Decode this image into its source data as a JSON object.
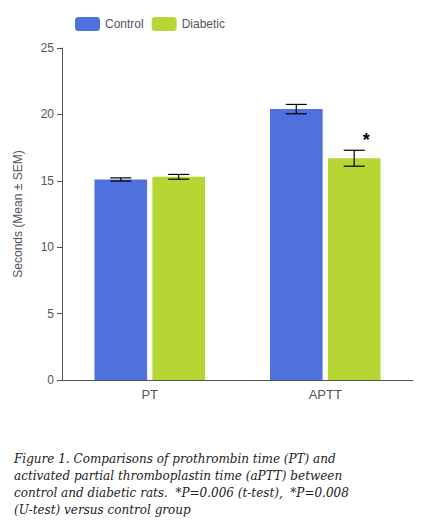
{
  "chart_data": {
    "type": "bar",
    "categories": [
      "PT",
      "APTT"
    ],
    "series": [
      {
        "name": "Control",
        "values": [
          15.1,
          20.4
        ],
        "errors": [
          0.12,
          0.35
        ]
      },
      {
        "name": "Diabetic",
        "values": [
          15.3,
          16.7
        ],
        "errors": [
          0.18,
          0.6
        ]
      }
    ],
    "ylabel": "Seconds (Mean ± SEM)",
    "ylim": [
      0,
      25
    ],
    "yticks": [
      0,
      5,
      10,
      15,
      20,
      25
    ],
    "grid": false,
    "legend": "upper left",
    "annotations": [
      {
        "text": "*",
        "category": "APTT",
        "series": "Diabetic"
      }
    ],
    "caption": "Figure 1. Comparisons of prothrombin time (PT) and\nactivated partial thromboplastin time (aPTT) between\ncontrol and diabetic rats.  *P=0.006 (t-test),  *P=0.008\n(U-test) versus control group"
  }
}
